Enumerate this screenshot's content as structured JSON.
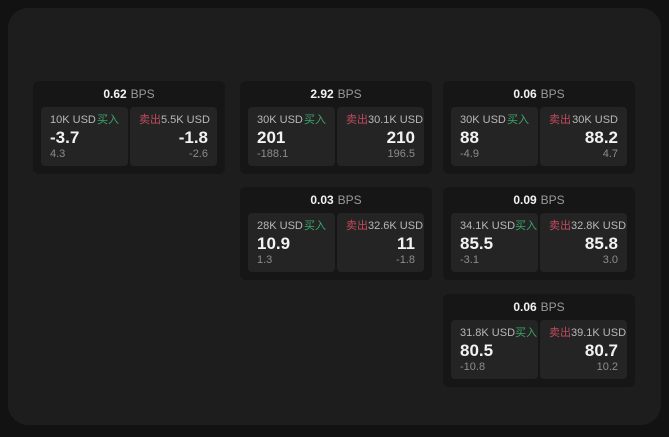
{
  "labels": {
    "bps_unit": "BPS",
    "buy": "买入",
    "sell": "卖出"
  },
  "theme": {
    "outer_bg": "#121212",
    "panel_bg": "#1d1d1d",
    "card_bg": "#161616",
    "tile_bg": "#242424",
    "buy_color": "#3fa46c",
    "sell_color": "#c04a5e",
    "price_color": "#f2f2f2",
    "muted_color": "#8c8c8c"
  },
  "cards": [
    {
      "row": 1,
      "col": 1,
      "spread_bps": "0.62",
      "buy": {
        "size": "10K USD",
        "price": "-3.7",
        "delta": "4.3"
      },
      "sell": {
        "size": "5.5K USD",
        "price": "-1.8",
        "delta": "-2.6"
      }
    },
    {
      "row": 1,
      "col": 2,
      "spread_bps": "2.92",
      "buy": {
        "size": "30K USD",
        "price": "201",
        "delta": "-188.1"
      },
      "sell": {
        "size": "30.1K USD",
        "price": "210",
        "delta": "196.5"
      }
    },
    {
      "row": 1,
      "col": 3,
      "spread_bps": "0.06",
      "buy": {
        "size": "30K USD",
        "price": "88",
        "delta": "-4.9"
      },
      "sell": {
        "size": "30K USD",
        "price": "88.2",
        "delta": "4.7"
      }
    },
    {
      "row": 2,
      "col": 2,
      "spread_bps": "0.03",
      "buy": {
        "size": "28K USD",
        "price": "10.9",
        "delta": "1.3"
      },
      "sell": {
        "size": "32.6K USD",
        "price": "11",
        "delta": "-1.8"
      }
    },
    {
      "row": 2,
      "col": 3,
      "spread_bps": "0.09",
      "buy": {
        "size": "34.1K USD",
        "price": "85.5",
        "delta": "-3.1"
      },
      "sell": {
        "size": "32.8K USD",
        "price": "85.8",
        "delta": "3.0"
      }
    },
    {
      "row": 3,
      "col": 3,
      "spread_bps": "0.06",
      "buy": {
        "size": "31.8K USD",
        "price": "80.5",
        "delta": "-10.8"
      },
      "sell": {
        "size": "39.1K USD",
        "price": "80.7",
        "delta": "10.2"
      }
    }
  ]
}
